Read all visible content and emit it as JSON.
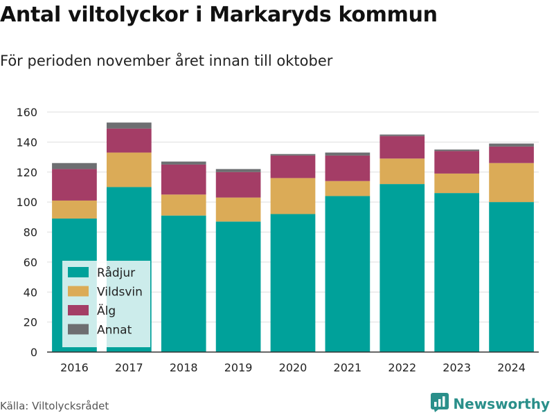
{
  "header": {
    "title": "Antal viltolyckor i Markaryds kommun",
    "subtitle": "För perioden november året innan till oktober"
  },
  "footer": {
    "source": "Källa: Viltolycksrådet",
    "brand": "Newsworthy",
    "brand_icon": "bar-chart-logo-icon"
  },
  "chart_data": {
    "type": "bar",
    "stacked": true,
    "categories": [
      "2016",
      "2017",
      "2018",
      "2019",
      "2020",
      "2021",
      "2022",
      "2023",
      "2024"
    ],
    "series": [
      {
        "name": "Rådjur",
        "color": "#00a19a",
        "values": [
          89,
          110,
          91,
          87,
          92,
          104,
          112,
          106,
          100
        ]
      },
      {
        "name": "Vildsvin",
        "color": "#dbab57",
        "values": [
          12,
          23,
          14,
          16,
          24,
          10,
          17,
          13,
          26
        ]
      },
      {
        "name": "Älg",
        "color": "#a43d66",
        "values": [
          21,
          16,
          20,
          17,
          15,
          17,
          15,
          15,
          11
        ]
      },
      {
        "name": "Annat",
        "color": "#6d6e71",
        "values": [
          4,
          4,
          2,
          2,
          1,
          2,
          1,
          1,
          2
        ]
      }
    ],
    "ylim": [
      0,
      160
    ],
    "yticks": [
      "0",
      "20",
      "40",
      "60",
      "80",
      "100",
      "120",
      "140",
      "160"
    ],
    "grid": true,
    "legend_position": "bottom-left"
  }
}
